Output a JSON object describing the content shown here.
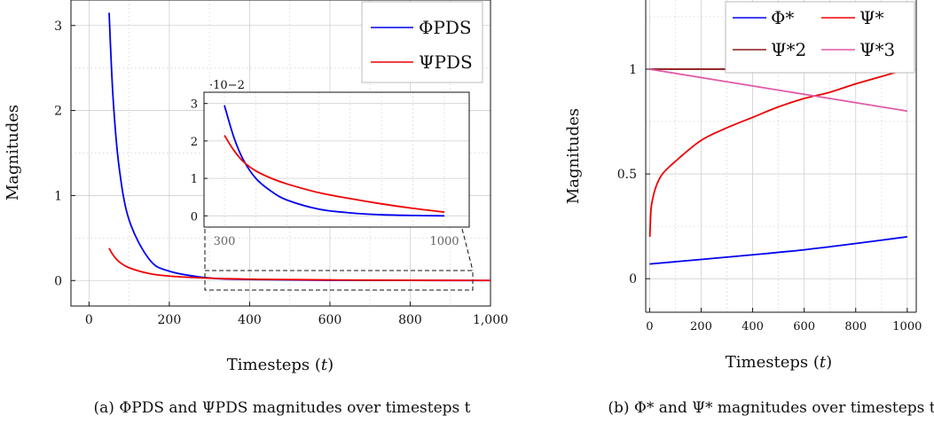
{
  "chart_data": [
    {
      "id": "a",
      "type": "line",
      "xlabel": "Timesteps (t)",
      "ylabel": "Magnitudes",
      "xlim": [
        -45,
        1000
      ],
      "ylim": [
        -0.3,
        3.3
      ],
      "xticks": [
        0,
        200,
        400,
        600,
        800,
        1000
      ],
      "xtick_labels": [
        "0",
        "200",
        "400",
        "600",
        "800",
        "1,000"
      ],
      "yticks": [
        0,
        1,
        2,
        3
      ],
      "ytick_labels": [
        "0",
        "1",
        "2",
        "3"
      ],
      "legend_position": "top-right",
      "grid": true,
      "caption": "(a) ΦPDS and ΨPDS magnitudes over timesteps t",
      "series": [
        {
          "name": "ΦPDS",
          "color": "#0000ee",
          "x": [
            50,
            60,
            75,
            100,
            150,
            200,
            300,
            400,
            600,
            800,
            1000
          ],
          "y": [
            3.15,
            2.14,
            1.33,
            0.71,
            0.25,
            0.11,
            0.03,
            0.012,
            0.003,
            0.001,
            0.0003
          ]
        },
        {
          "name": "ΨPDS",
          "color": "#ee0000",
          "x": [
            50,
            60,
            75,
            100,
            150,
            200,
            300,
            400,
            600,
            800,
            1000
          ],
          "y": [
            0.38,
            0.3,
            0.22,
            0.15,
            0.082,
            0.052,
            0.027,
            0.016,
            0.007,
            0.003,
            0.001
          ]
        }
      ],
      "inset": {
        "xlim": [
          300,
          1000
        ],
        "ylim": [
          -0.3,
          3.3
        ],
        "scale_label": "·10−2",
        "yticks": [
          0,
          1,
          2,
          3
        ],
        "xtick_labels": [
          "300",
          "1000"
        ],
        "zoom_ylim": [
          -0.12,
          0.12
        ],
        "series": [
          {
            "name": "ΦPDS",
            "color": "#0000ee",
            "x": [
              300,
              330,
              360,
              400,
              450,
              500,
              600,
              700,
              800,
              900,
              1000
            ],
            "y": [
              2.95,
              2.1,
              1.5,
              1.0,
              0.65,
              0.42,
              0.18,
              0.08,
              0.03,
              0.01,
              0.0
            ]
          },
          {
            "name": "ΨPDS",
            "color": "#ee0000",
            "x": [
              300,
              330,
              360,
              400,
              450,
              500,
              600,
              700,
              800,
              900,
              1000
            ],
            "y": [
              2.15,
              1.75,
              1.45,
              1.2,
              1.0,
              0.85,
              0.62,
              0.46,
              0.32,
              0.2,
              0.1
            ]
          }
        ]
      }
    },
    {
      "id": "b",
      "type": "line",
      "xlabel": "Timesteps (t)",
      "ylabel": "Magnitudes",
      "xlim": [
        -15,
        1035
      ],
      "ylim": [
        -0.16,
        1.33
      ],
      "xticks": [
        0,
        200,
        400,
        600,
        800,
        1000
      ],
      "xtick_labels": [
        "0",
        "200",
        "400",
        "600",
        "800",
        "1000"
      ],
      "yticks": [
        0,
        0.5,
        1
      ],
      "ytick_labels": [
        "0",
        "0.5",
        "1"
      ],
      "legend_position": "top-right",
      "grid": true,
      "caption": "(b) Φ* and Ψ* magnitudes over timesteps t",
      "series": [
        {
          "name": "Φ*",
          "color": "#0000ee",
          "x": [
            0,
            200,
            400,
            600,
            800,
            1000
          ],
          "y": [
            0.07,
            0.092,
            0.114,
            0.138,
            0.168,
            0.2
          ]
        },
        {
          "name": "Ψ*",
          "color": "#ee0000",
          "x": [
            1,
            5,
            10,
            25,
            50,
            100,
            200,
            300,
            400,
            500,
            600,
            700,
            800,
            900,
            1000
          ],
          "y": [
            0.2,
            0.32,
            0.37,
            0.44,
            0.5,
            0.56,
            0.66,
            0.72,
            0.77,
            0.82,
            0.86,
            0.89,
            0.93,
            0.965,
            1.0
          ]
        },
        {
          "name": "Ψ*2",
          "color": "#8b1a1a",
          "x": [
            0,
            1000
          ],
          "y": [
            1.0,
            1.0
          ]
        },
        {
          "name": "Ψ*3",
          "color": "#e05aa8",
          "x": [
            0,
            1000
          ],
          "y": [
            1.0,
            0.8
          ]
        }
      ]
    }
  ]
}
